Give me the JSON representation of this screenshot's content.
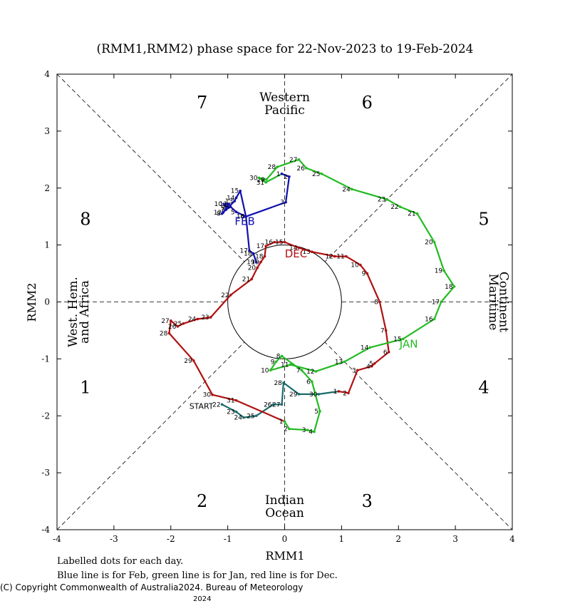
{
  "chart_data": {
    "type": "line",
    "title": "(RMM1,RMM2) phase space for 22-Nov-2023 to 19-Feb-2024",
    "xlabel": "RMM1",
    "ylabel": "RMM2",
    "xlim": [
      -4,
      4
    ],
    "ylim": [
      -4,
      4
    ],
    "x_ticks": [
      "-4",
      "-3",
      "-2",
      "-1",
      "0",
      "1",
      "2",
      "3",
      "4"
    ],
    "y_ticks": [
      "-4",
      "-3",
      "-2",
      "-1",
      "0",
      "1",
      "2",
      "3",
      "4"
    ],
    "phases": [
      {
        "label": "1",
        "x": -3.5,
        "y": -1.5
      },
      {
        "label": "2",
        "x": -1.45,
        "y": -3.5
      },
      {
        "label": "3",
        "x": 1.45,
        "y": -3.5
      },
      {
        "label": "4",
        "x": 3.5,
        "y": -1.5
      },
      {
        "label": "5",
        "x": 3.5,
        "y": 1.45
      },
      {
        "label": "6",
        "x": 1.45,
        "y": 3.5
      },
      {
        "label": "7",
        "x": -1.45,
        "y": 3.5
      },
      {
        "label": "8",
        "x": -3.5,
        "y": 1.45
      }
    ],
    "regions": {
      "top": [
        "Western",
        "Pacific"
      ],
      "bottom": [
        "Indian",
        "Ocean"
      ],
      "left": [
        "West. Hem.",
        "and Africa"
      ],
      "right": [
        "Maritime",
        "Continent"
      ]
    },
    "start_label": "START",
    "series": [
      {
        "name": "Nov",
        "color": "#1a6b6b",
        "points": [
          {
            "d": "22",
            "x": -1.1,
            "y": -1.8
          },
          {
            "d": "23",
            "x": -0.85,
            "y": -1.93
          },
          {
            "d": "24",
            "x": -0.72,
            "y": -2.03
          },
          {
            "d": "25",
            "x": -0.5,
            "y": -2.0
          },
          {
            "d": "26",
            "x": -0.2,
            "y": -1.8
          },
          {
            "d": "27",
            "x": -0.05,
            "y": -1.8
          },
          {
            "d": "28",
            "x": -0.02,
            "y": -1.42
          },
          {
            "d": "29",
            "x": 0.25,
            "y": -1.62
          },
          {
            "d": "30",
            "x": 0.6,
            "y": -1.62
          }
        ]
      },
      {
        "name": "Dec",
        "label": "DEC",
        "color": "#b01010",
        "points": [
          {
            "d": "1",
            "x": 0.95,
            "y": -1.57
          },
          {
            "d": "2",
            "x": 1.12,
            "y": -1.6
          },
          {
            "d": "3",
            "x": 1.28,
            "y": -1.2
          },
          {
            "d": "4",
            "x": 1.53,
            "y": -1.13
          },
          {
            "d": "5",
            "x": 1.58,
            "y": -1.08
          },
          {
            "d": "6",
            "x": 1.83,
            "y": -0.88
          },
          {
            "d": "7",
            "x": 1.78,
            "y": -0.5
          },
          {
            "d": "8",
            "x": 1.67,
            "y": 0.0
          },
          {
            "d": "9",
            "x": 1.45,
            "y": 0.5
          },
          {
            "d": "10",
            "x": 1.33,
            "y": 0.65
          },
          {
            "d": "11",
            "x": 1.08,
            "y": 0.8
          },
          {
            "d": "12",
            "x": 0.88,
            "y": 0.8
          },
          {
            "d": "13",
            "x": 0.48,
            "y": 0.88
          },
          {
            "d": "14",
            "x": 0.25,
            "y": 0.95
          },
          {
            "d": "15",
            "x": 0.0,
            "y": 1.05
          },
          {
            "d": "16",
            "x": -0.18,
            "y": 1.05
          },
          {
            "d": "17",
            "x": -0.33,
            "y": 0.98
          },
          {
            "d": "18",
            "x": -0.35,
            "y": 0.8
          },
          {
            "d": "19",
            "x": -0.42,
            "y": 0.7
          },
          {
            "d": "20",
            "x": -0.48,
            "y": 0.6
          },
          {
            "d": "21",
            "x": -0.58,
            "y": 0.4
          },
          {
            "d": "22",
            "x": -0.95,
            "y": 0.12
          },
          {
            "d": "23",
            "x": -1.3,
            "y": -0.27
          },
          {
            "d": "24",
            "x": -1.53,
            "y": -0.3
          },
          {
            "d": "25",
            "x": -1.78,
            "y": -0.38
          },
          {
            "d": "26",
            "x": -1.88,
            "y": -0.43
          },
          {
            "d": "27",
            "x": -2.0,
            "y": -0.33
          },
          {
            "d": "28",
            "x": -2.03,
            "y": -0.55
          },
          {
            "d": "29",
            "x": -1.6,
            "y": -1.03
          },
          {
            "d": "30",
            "x": -1.27,
            "y": -1.63
          },
          {
            "d": "31",
            "x": -0.85,
            "y": -1.73
          }
        ]
      },
      {
        "name": "Jan",
        "label": "JAN",
        "color": "#22bb22",
        "points": [
          {
            "d": "1",
            "x": 0.0,
            "y": -2.1
          },
          {
            "d": "2",
            "x": 0.08,
            "y": -2.23
          },
          {
            "d": "3",
            "x": 0.4,
            "y": -2.25
          },
          {
            "d": "4",
            "x": 0.52,
            "y": -2.28
          },
          {
            "d": "5",
            "x": 0.62,
            "y": -1.92
          },
          {
            "d": "6",
            "x": 0.48,
            "y": -1.4
          },
          {
            "d": "7",
            "x": 0.3,
            "y": -1.2
          },
          {
            "d": "8",
            "x": -0.05,
            "y": -0.95
          },
          {
            "d": "9",
            "x": -0.15,
            "y": -1.05
          },
          {
            "d": "10",
            "x": -0.25,
            "y": -1.2
          },
          {
            "d": "11",
            "x": 0.1,
            "y": -1.1
          },
          {
            "d": "12",
            "x": 0.55,
            "y": -1.22
          },
          {
            "d": "13",
            "x": 1.05,
            "y": -1.05
          },
          {
            "d": "14",
            "x": 1.5,
            "y": -0.8
          },
          {
            "d": "15",
            "x": 2.08,
            "y": -0.65
          },
          {
            "d": "16",
            "x": 2.63,
            "y": -0.3
          },
          {
            "d": "17",
            "x": 2.75,
            "y": 0.0
          },
          {
            "d": "18",
            "x": 2.98,
            "y": 0.27
          },
          {
            "d": "19",
            "x": 2.8,
            "y": 0.55
          },
          {
            "d": "20",
            "x": 2.63,
            "y": 1.05
          },
          {
            "d": "21",
            "x": 2.33,
            "y": 1.55
          },
          {
            "d": "22",
            "x": 2.03,
            "y": 1.67
          },
          {
            "d": "23",
            "x": 1.8,
            "y": 1.8
          },
          {
            "d": "24",
            "x": 1.18,
            "y": 1.98
          },
          {
            "d": "25",
            "x": 0.65,
            "y": 2.25
          },
          {
            "d": "26",
            "x": 0.38,
            "y": 2.35
          },
          {
            "d": "27",
            "x": 0.25,
            "y": 2.5
          },
          {
            "d": "28",
            "x": -0.13,
            "y": 2.37
          },
          {
            "d": "29",
            "x": -0.32,
            "y": 2.15
          },
          {
            "d": "30",
            "x": -0.45,
            "y": 2.18
          },
          {
            "d": "31",
            "x": -0.33,
            "y": 2.1
          }
        ]
      },
      {
        "name": "Feb",
        "label": "FEB",
        "color": "#1010b0",
        "points": [
          {
            "d": "1",
            "x": -0.05,
            "y": 2.25
          },
          {
            "d": "2",
            "x": 0.08,
            "y": 2.2
          },
          {
            "d": "3",
            "x": 0.02,
            "y": 1.75
          },
          {
            "d": "4",
            "x": -0.68,
            "y": 1.5
          },
          {
            "d": "5",
            "x": -0.85,
            "y": 1.58
          },
          {
            "d": "6",
            "x": -0.95,
            "y": 1.67
          },
          {
            "d": "7",
            "x": -1.03,
            "y": 1.62
          },
          {
            "d": "8",
            "x": -1.1,
            "y": 1.55
          },
          {
            "d": "9",
            "x": -1.02,
            "y": 1.65
          },
          {
            "d": "10",
            "x": -1.07,
            "y": 1.72
          },
          {
            "d": "11",
            "x": -0.98,
            "y": 1.72
          },
          {
            "d": "12",
            "x": -1.08,
            "y": 1.57
          },
          {
            "d": "13",
            "x": -0.88,
            "y": 1.77
          },
          {
            "d": "14",
            "x": -0.85,
            "y": 1.83
          },
          {
            "d": "15",
            "x": -0.78,
            "y": 1.95
          },
          {
            "d": "16",
            "x": -0.68,
            "y": 1.5
          },
          {
            "d": "17",
            "x": -0.62,
            "y": 0.9
          },
          {
            "d": "18",
            "x": -0.55,
            "y": 0.85
          },
          {
            "d": "19",
            "x": -0.5,
            "y": 0.7
          }
        ]
      }
    ]
  },
  "notes": {
    "line1": "Labelled dots for each day.",
    "line2": "Blue line is for Feb, green line is for Jan, red line is for Dec.",
    "copyright": "(C) Copyright Commonwealth of Australia",
    "copyright_year": "2024",
    "copyright_tail": ". Bureau of Meteorology",
    "year_below": "2024"
  }
}
